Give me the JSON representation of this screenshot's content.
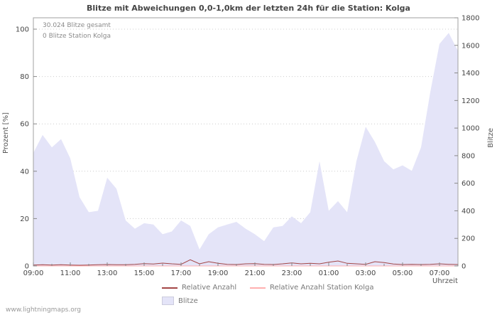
{
  "annotations": {
    "total": "30.024 Blitze gesamt",
    "station": "0 Blitze Station Kolga"
  },
  "watermark": "www.lightningmaps.org",
  "legend": [
    {
      "label": "Relative Anzahl",
      "type": "line",
      "color": "#a34545"
    },
    {
      "label": "Relative Anzahl Station Kolga",
      "type": "line",
      "color": "#ffb0b0"
    },
    {
      "label": "Blitze",
      "type": "area",
      "color": "#e4e4f8"
    }
  ],
  "chart_data": {
    "type": "area",
    "title": "Blitze mit Abweichungen 0,0-1,0km der letzten 24h für die Station: Kolga",
    "xlabel": "Uhrzeit",
    "grid": "horizontal-dotted",
    "legend_position": "bottom",
    "left_axis": {
      "label": "Prozent  [%]",
      "range": [
        0,
        100
      ],
      "ticks": [
        0,
        20,
        40,
        60,
        80,
        100
      ]
    },
    "right_axis": {
      "label": "Blitze",
      "range": [
        0,
        1800
      ],
      "ticks": [
        0,
        200,
        400,
        600,
        800,
        1000,
        1200,
        1400,
        1600,
        1800
      ]
    },
    "x": [
      "09:00",
      "09:30",
      "10:00",
      "10:30",
      "11:00",
      "11:30",
      "12:00",
      "12:30",
      "13:00",
      "13:30",
      "14:00",
      "14:30",
      "15:00",
      "15:30",
      "16:00",
      "16:30",
      "17:00",
      "17:30",
      "18:00",
      "18:30",
      "19:00",
      "19:30",
      "20:00",
      "20:30",
      "21:00",
      "21:30",
      "22:00",
      "22:30",
      "23:00",
      "23:30",
      "00:00",
      "00:30",
      "01:00",
      "01:30",
      "02:00",
      "02:30",
      "03:00",
      "03:30",
      "04:00",
      "04:30",
      "05:00",
      "05:30",
      "06:00",
      "06:30",
      "07:00",
      "07:30",
      "08:00"
    ],
    "x_ticks": [
      "09:00",
      "11:00",
      "13:00",
      "15:00",
      "17:00",
      "19:00",
      "21:00",
      "23:00",
      "01:00",
      "03:00",
      "05:00",
      "07:00"
    ],
    "series": [
      {
        "name": "Blitze",
        "type": "area",
        "axis": "right",
        "color": "#e4e4f8",
        "values": [
          820,
          950,
          860,
          920,
          780,
          500,
          390,
          400,
          640,
          560,
          330,
          270,
          310,
          300,
          230,
          250,
          330,
          290,
          120,
          230,
          280,
          300,
          320,
          270,
          230,
          180,
          280,
          290,
          360,
          310,
          390,
          760,
          400,
          470,
          390,
          760,
          1010,
          900,
          760,
          700,
          730,
          690,
          860,
          1260,
          1610,
          1690,
          1560
        ]
      },
      {
        "name": "Relative Anzahl",
        "type": "line",
        "axis": "left",
        "color": "#a34545",
        "values": [
          0.4,
          0.5,
          0.4,
          0.5,
          0.4,
          0.3,
          0.4,
          0.5,
          0.6,
          0.5,
          0.5,
          0.7,
          1.0,
          0.8,
          1.2,
          0.9,
          0.7,
          2.6,
          0.9,
          1.8,
          1.1,
          0.7,
          0.6,
          0.9,
          1.0,
          0.7,
          0.6,
          0.9,
          1.3,
          0.9,
          1.1,
          0.9,
          1.6,
          2.1,
          1.1,
          0.9,
          0.7,
          1.8,
          1.4,
          0.8,
          0.6,
          0.7,
          0.6,
          0.7,
          0.9,
          0.7,
          0.6
        ]
      },
      {
        "name": "Relative Anzahl Station Kolga",
        "type": "line",
        "axis": "left",
        "color": "#ffb0b0",
        "values": [
          0,
          0,
          0,
          0,
          0,
          0,
          0,
          0,
          0,
          0,
          0,
          0,
          0,
          0,
          0,
          0,
          0,
          0,
          0,
          0,
          0,
          0,
          0,
          0,
          0,
          0,
          0,
          0,
          0,
          0,
          0,
          0,
          0,
          0,
          0,
          0,
          0,
          0,
          0,
          0,
          0,
          0,
          0,
          0,
          0,
          0,
          0
        ]
      }
    ]
  }
}
